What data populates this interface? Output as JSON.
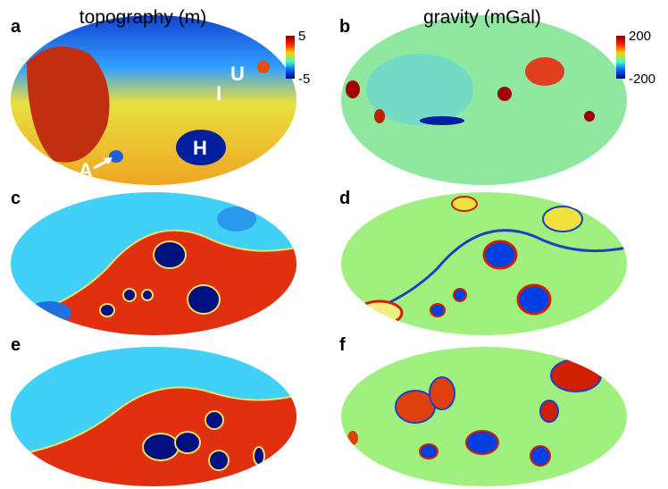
{
  "panels": [
    {
      "letter": "a",
      "title": "topography (m)",
      "colorbar": {
        "ticks": [
          5,
          -5
        ]
      },
      "labels": [
        "U",
        "I",
        "H",
        "A"
      ]
    },
    {
      "letter": "b",
      "title": "gravity (mGal)",
      "colorbar": {
        "ticks": [
          200,
          -200
        ]
      }
    },
    {
      "letter": "c"
    },
    {
      "letter": "d"
    },
    {
      "letter": "e"
    },
    {
      "letter": "f"
    }
  ]
}
